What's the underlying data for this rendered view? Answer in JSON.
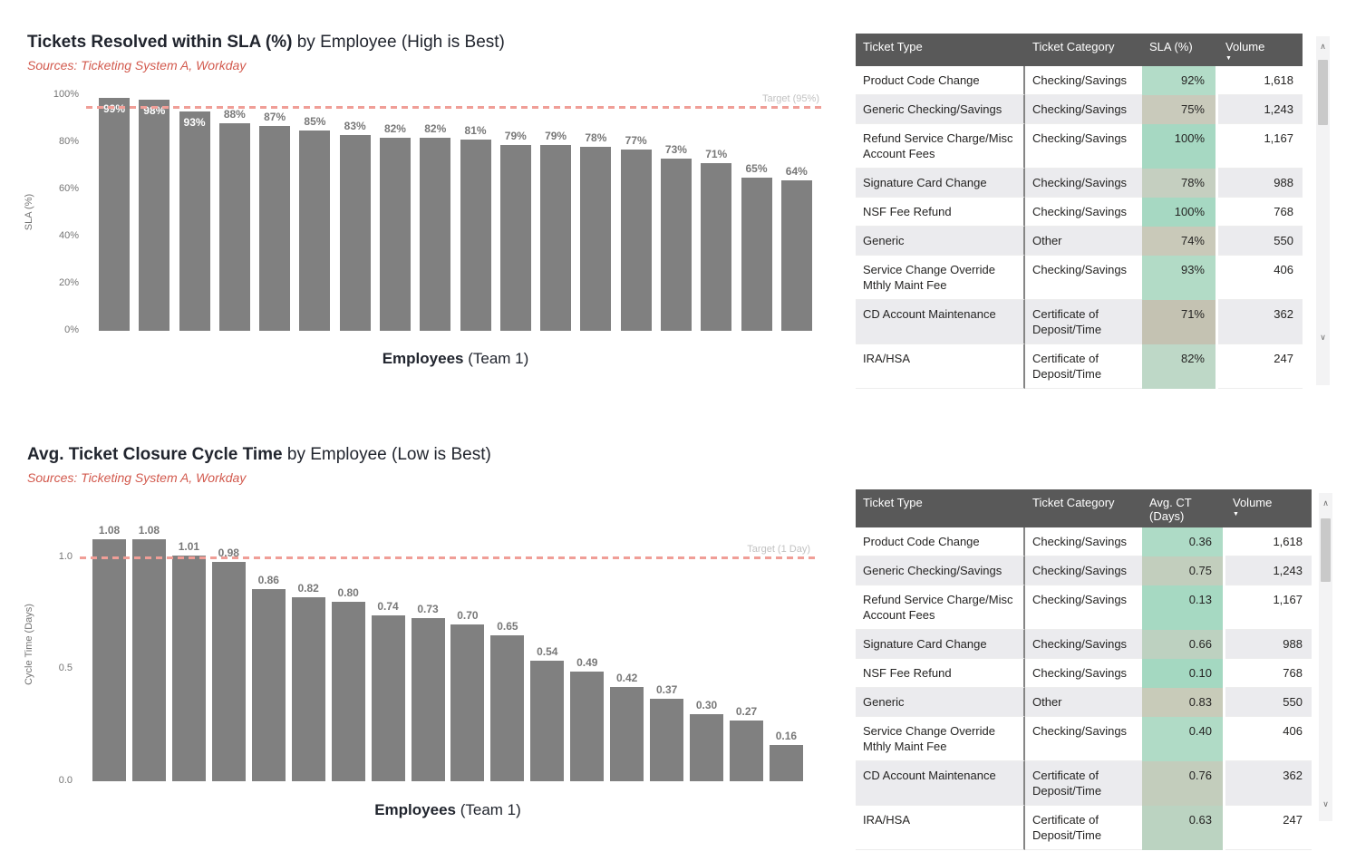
{
  "icons": {
    "scroll_up": "∧",
    "scroll_down": "∨",
    "sort_desc": "▼"
  },
  "colors": {
    "bar": "#808080",
    "target_line": "#f09e97",
    "subtitle_text": "#d2594d",
    "table_header_bg": "#595959",
    "alt_row_bg": "#ebebee"
  },
  "sections": [
    {
      "title_bold": "Tickets Resolved within SLA (%)",
      "title_rest": " by Employee (High is Best)",
      "subtitle": "Sources: Ticketing System A, Workday",
      "y_axis_title": "SLA (%)",
      "x_axis_bold": "Employees",
      "x_axis_rest": " (Team 1)",
      "target_label": "Target (95%)",
      "y_ticks": [
        "100%",
        "80%",
        "60%",
        "40%",
        "20%",
        "0%"
      ]
    },
    {
      "title_bold": "Avg. Ticket Closure Cycle Time",
      "title_rest": " by Employee (Low is Best)",
      "subtitle": "Sources: Ticketing System A, Workday",
      "y_axis_title": "Cycle Time (Days)",
      "x_axis_bold": "Employees",
      "x_axis_rest": " (Team 1)",
      "target_label": "Target (1 Day)",
      "y_ticks": [
        "1.0",
        "0.5",
        "0.0"
      ]
    }
  ],
  "chart_data": [
    {
      "type": "bar",
      "title": "Tickets Resolved within SLA (%) by Employee (High is Best)",
      "subtitle": "Sources: Ticketing System A, Workday",
      "xlabel": "Employees (Team 1)",
      "ylabel": "SLA (%)",
      "ylim": [
        0,
        100
      ],
      "yticks": [
        0,
        20,
        40,
        60,
        80,
        100
      ],
      "target": 95,
      "target_label": "Target (95%)",
      "n_bars": 18,
      "values": [
        99,
        98,
        93,
        88,
        87,
        85,
        83,
        82,
        82,
        81,
        79,
        79,
        78,
        77,
        73,
        71,
        65,
        64
      ],
      "labels": [
        "99%",
        "98%",
        "93%",
        "88%",
        "87%",
        "85%",
        "83%",
        "82%",
        "82%",
        "81%",
        "79%",
        "79%",
        "78%",
        "77%",
        "73%",
        "71%",
        "65%",
        "64%"
      ],
      "grid": false,
      "bar_color": "#808080"
    },
    {
      "type": "bar",
      "title": "Avg. Ticket Closure Cycle Time by Employee (Low is Best)",
      "subtitle": "Sources: Ticketing System A, Workday",
      "xlabel": "Employees (Team 1)",
      "ylabel": "Cycle Time (Days)",
      "ylim": [
        0,
        1.22
      ],
      "yticks": [
        0.0,
        0.5,
        1.0
      ],
      "target": 1.0,
      "target_label": "Target (1 Day)",
      "n_bars": 18,
      "values": [
        1.08,
        1.08,
        1.01,
        0.98,
        0.86,
        0.82,
        0.8,
        0.74,
        0.73,
        0.7,
        0.65,
        0.54,
        0.49,
        0.42,
        0.37,
        0.3,
        0.27,
        0.16
      ],
      "labels": [
        "1.08",
        "1.08",
        "1.01",
        "0.98",
        "0.86",
        "0.82",
        "0.80",
        "0.74",
        "0.73",
        "0.70",
        "0.65",
        "0.54",
        "0.49",
        "0.42",
        "0.37",
        "0.30",
        "0.27",
        "0.16"
      ],
      "grid": false,
      "bar_color": "#808080"
    }
  ],
  "tables": [
    {
      "columns": [
        "Ticket Type",
        "Ticket Category",
        "SLA (%)",
        "Volume"
      ],
      "sorted_by": "Volume",
      "rows": [
        {
          "ticket_type": "Product Code Change",
          "ticket_category": "Checking/Savings",
          "value": "92%",
          "volume": "1,618",
          "value_bg": "#b3dcc8"
        },
        {
          "ticket_type": "Generic Checking/Savings",
          "ticket_category": "Checking/Savings",
          "value": "75%",
          "volume": "1,243",
          "value_bg": "#c9cabb"
        },
        {
          "ticket_type": "Refund Service Charge/Misc Account Fees",
          "ticket_category": "Checking/Savings",
          "value": "100%",
          "volume": "1,167",
          "value_bg": "#a6d8c2"
        },
        {
          "ticket_type": "Signature Card Change",
          "ticket_category": "Checking/Savings",
          "value": "78%",
          "volume": "988",
          "value_bg": "#c5cfc0"
        },
        {
          "ticket_type": "NSF Fee Refund",
          "ticket_category": "Checking/Savings",
          "value": "100%",
          "volume": "768",
          "value_bg": "#a6d8c2"
        },
        {
          "ticket_type": "Generic",
          "ticket_category": "Other",
          "value": "74%",
          "volume": "550",
          "value_bg": "#c9c9b9"
        },
        {
          "ticket_type": "Service Change Override Mthly Maint Fee",
          "ticket_category": "Checking/Savings",
          "value": "93%",
          "volume": "406",
          "value_bg": "#b2dbc6"
        },
        {
          "ticket_type": "CD Account Maintenance",
          "ticket_category": "Certificate of Deposit/Time",
          "value": "71%",
          "volume": "362",
          "value_bg": "#c4c2b2"
        },
        {
          "ticket_type": "IRA/HSA",
          "ticket_category": "Certificate of Deposit/Time",
          "value": "82%",
          "volume": "247",
          "value_bg": "#bed8c7"
        }
      ]
    },
    {
      "columns": [
        "Ticket Type",
        "Ticket Category",
        "Avg. CT (Days)",
        "Volume"
      ],
      "sorted_by": "Volume",
      "rows": [
        {
          "ticket_type": "Product Code Change",
          "ticket_category": "Checking/Savings",
          "value": "0.36",
          "volume": "1,618",
          "value_bg": "#aedbc6"
        },
        {
          "ticket_type": "Generic Checking/Savings",
          "ticket_category": "Checking/Savings",
          "value": "0.75",
          "volume": "1,243",
          "value_bg": "#c2cebd"
        },
        {
          "ticket_type": "Refund Service Charge/Misc Account Fees",
          "ticket_category": "Checking/Savings",
          "value": "0.13",
          "volume": "1,167",
          "value_bg": "#a6d9c2"
        },
        {
          "ticket_type": "Signature Card Change",
          "ticket_category": "Checking/Savings",
          "value": "0.66",
          "volume": "988",
          "value_bg": "#bdd1c0"
        },
        {
          "ticket_type": "NSF Fee Refund",
          "ticket_category": "Checking/Savings",
          "value": "0.10",
          "volume": "768",
          "value_bg": "#a4d8c1"
        },
        {
          "ticket_type": "Generic",
          "ticket_category": "Other",
          "value": "0.83",
          "volume": "550",
          "value_bg": "#c8cbb9"
        },
        {
          "ticket_type": "Service Change Override Mthly Maint Fee",
          "ticket_category": "Checking/Savings",
          "value": "0.40",
          "volume": "406",
          "value_bg": "#b0dbc6"
        },
        {
          "ticket_type": "CD Account Maintenance",
          "ticket_category": "Certificate of Deposit/Time",
          "value": "0.76",
          "volume": "362",
          "value_bg": "#c3cdbc"
        },
        {
          "ticket_type": "IRA/HSA",
          "ticket_category": "Certificate of Deposit/Time",
          "value": "0.63",
          "volume": "247",
          "value_bg": "#bbd3c1"
        }
      ]
    }
  ]
}
